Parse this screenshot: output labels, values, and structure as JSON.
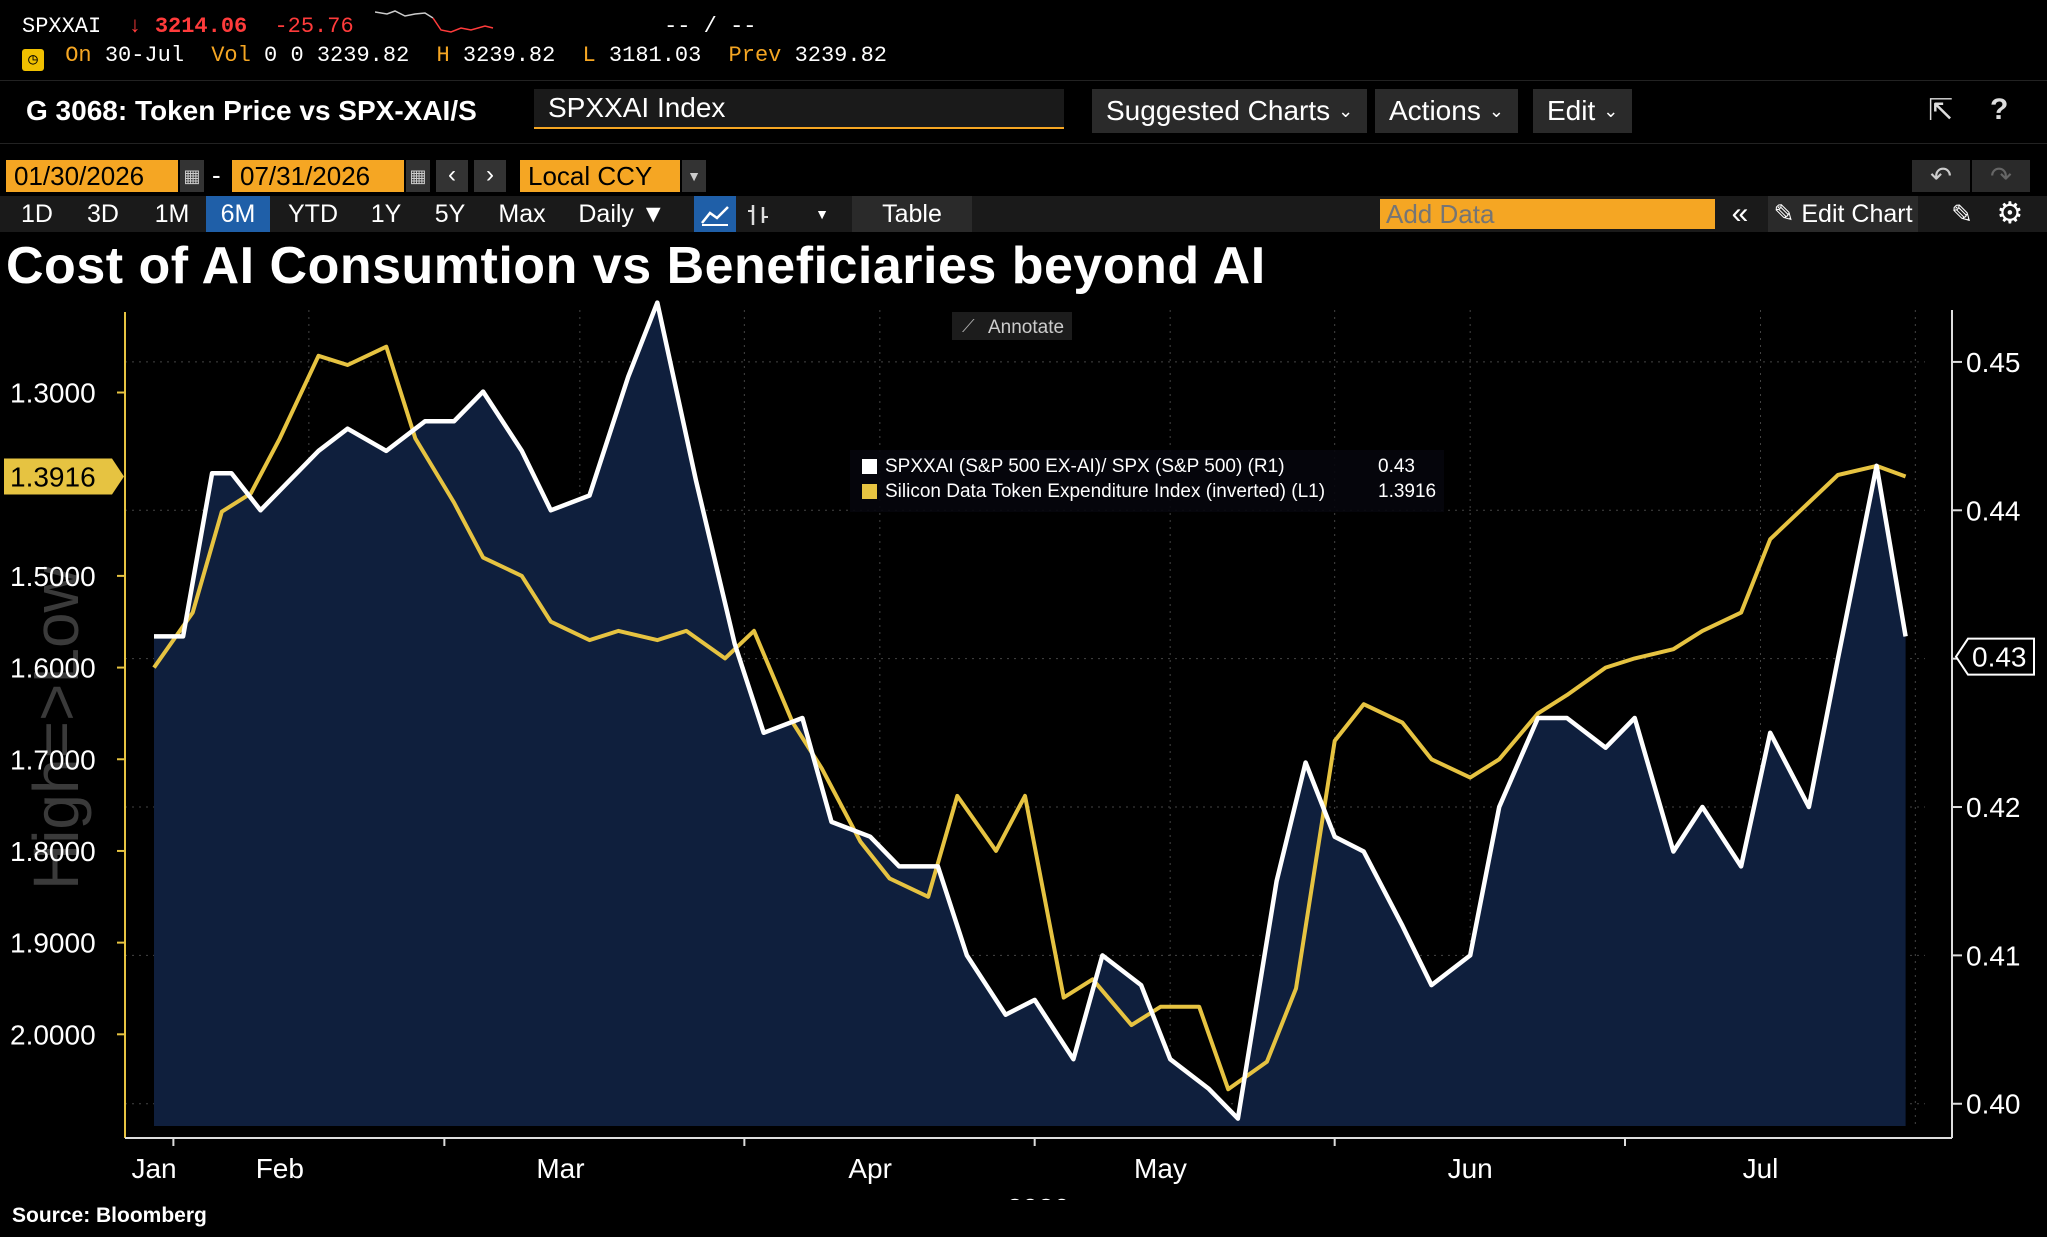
{
  "quote": {
    "ticker": "SPXXAI",
    "arrow": "↓",
    "last": "3214.06",
    "change": "-25.76",
    "bidask": "-- / --",
    "on_label": "On",
    "date": "30-Jul",
    "vol_label": "Vol",
    "vol": "0",
    "vol2": "0",
    "open": "3239.82",
    "high_label": "H",
    "high": "3239.82",
    "low_label": "L",
    "low": "3181.03",
    "prev_label": "Prev",
    "prev": "3239.82"
  },
  "toolbar": {
    "chart_id": "G 3068: Token Price vs SPX-XAI/S",
    "security": "SPXXAI Index",
    "suggested": "Suggested Charts",
    "actions": "Actions",
    "edit": "Edit",
    "help": "?"
  },
  "dates": {
    "start": "01/30/2026",
    "sep": "-",
    "end": "07/31/2026",
    "currency": "Local CCY"
  },
  "ranges": [
    "1D",
    "3D",
    "1M",
    "6M",
    "YTD",
    "1Y",
    "5Y",
    "Max"
  ],
  "active_range": "6M",
  "frequency": "Daily ▼",
  "table_label": "Table",
  "add_data_placeholder": "Add Data",
  "edit_chart": "Edit Chart",
  "colors": {
    "accent": "#f5a623",
    "white_series": "#ffffff",
    "yellow_series": "#e6c341",
    "area_fill": "#0f1f3d",
    "active_tab": "#1f5fa8"
  },
  "chart_data": {
    "type": "line",
    "title": "Cost of AI Consumtion vs Beneficiaries beyond AI",
    "annotate_label": "Annotate",
    "watermark": "High=>Low",
    "x_months": [
      "Jan",
      "Feb",
      "Mar",
      "Apr",
      "May",
      "Jun",
      "Jul"
    ],
    "x_year": "2026",
    "left_axis": {
      "inverted": true,
      "range": [
        2.1,
        1.21
      ],
      "ticks": [
        "1.3000",
        "1.5000",
        "1.6000",
        "1.7000",
        "1.8000",
        "1.9000",
        "2.0000"
      ],
      "current_label": "1.3916"
    },
    "right_axis": {
      "range": [
        0.3985,
        0.4535
      ],
      "ticks": [
        "0.45",
        "0.44",
        "0.43",
        "0.42",
        "0.41",
        "0.40"
      ],
      "current_label": "0.43"
    },
    "grid": true,
    "legend_position": "top-center",
    "series": [
      {
        "name": "SPXXAI (S&P 500 EX-AI)/ SPX (S&P 500) (R1)",
        "value": "0.43",
        "axis": "right",
        "dates": [
          "2026-01-30",
          "2026-02-02",
          "2026-02-05",
          "2026-02-07",
          "2026-02-10",
          "2026-02-13",
          "2026-02-16",
          "2026-02-19",
          "2026-02-23",
          "2026-02-27",
          "2026-03-02",
          "2026-03-05",
          "2026-03-09",
          "2026-03-12",
          "2026-03-16",
          "2026-03-20",
          "2026-03-23",
          "2026-03-27",
          "2026-03-31",
          "2026-04-03",
          "2026-04-07",
          "2026-04-10",
          "2026-04-14",
          "2026-04-17",
          "2026-04-21",
          "2026-04-24",
          "2026-04-28",
          "2026-05-01",
          "2026-05-05",
          "2026-05-08",
          "2026-05-12",
          "2026-05-15",
          "2026-05-19",
          "2026-05-22",
          "2026-05-26",
          "2026-05-29",
          "2026-06-01",
          "2026-06-04",
          "2026-06-08",
          "2026-06-11",
          "2026-06-15",
          "2026-06-18",
          "2026-06-22",
          "2026-06-25",
          "2026-06-29",
          "2026-07-02",
          "2026-07-06",
          "2026-07-09",
          "2026-07-13",
          "2026-07-16",
          "2026-07-20",
          "2026-07-23",
          "2026-07-27",
          "2026-07-30"
        ],
        "values": [
          0.4315,
          0.4315,
          0.4425,
          0.4425,
          0.44,
          0.442,
          0.444,
          0.4455,
          0.444,
          0.446,
          0.446,
          0.448,
          0.444,
          0.44,
          0.441,
          0.449,
          0.454,
          0.442,
          0.431,
          0.425,
          0.426,
          0.419,
          0.418,
          0.416,
          0.416,
          0.41,
          0.406,
          0.407,
          0.403,
          0.41,
          0.408,
          0.403,
          0.401,
          0.399,
          0.415,
          0.423,
          0.418,
          0.417,
          0.412,
          0.408,
          0.41,
          0.42,
          0.426,
          0.426,
          0.424,
          0.426,
          0.417,
          0.42,
          0.416,
          0.425,
          0.42,
          0.43,
          0.443,
          0.4315
        ]
      },
      {
        "name": "Silicon Data Token Expenditure Index (inverted) (L1)",
        "value": "1.3916",
        "axis": "left",
        "dates": [
          "2026-01-30",
          "2026-02-03",
          "2026-02-06",
          "2026-02-09",
          "2026-02-12",
          "2026-02-16",
          "2026-02-19",
          "2026-02-23",
          "2026-02-26",
          "2026-03-02",
          "2026-03-05",
          "2026-03-09",
          "2026-03-12",
          "2026-03-16",
          "2026-03-19",
          "2026-03-23",
          "2026-03-26",
          "2026-03-30",
          "2026-04-02",
          "2026-04-06",
          "2026-04-09",
          "2026-04-13",
          "2026-04-16",
          "2026-04-20",
          "2026-04-23",
          "2026-04-27",
          "2026-04-30",
          "2026-05-04",
          "2026-05-07",
          "2026-05-11",
          "2026-05-14",
          "2026-05-18",
          "2026-05-21",
          "2026-05-25",
          "2026-05-28",
          "2026-06-01",
          "2026-06-04",
          "2026-06-08",
          "2026-06-11",
          "2026-06-15",
          "2026-06-18",
          "2026-06-22",
          "2026-06-25",
          "2026-06-29",
          "2026-07-02",
          "2026-07-06",
          "2026-07-09",
          "2026-07-13",
          "2026-07-16",
          "2026-07-20",
          "2026-07-23",
          "2026-07-27",
          "2026-07-30"
        ],
        "values": [
          1.6,
          1.54,
          1.43,
          1.41,
          1.35,
          1.26,
          1.27,
          1.25,
          1.35,
          1.42,
          1.48,
          1.5,
          1.55,
          1.57,
          1.56,
          1.57,
          1.56,
          1.59,
          1.56,
          1.66,
          1.71,
          1.79,
          1.83,
          1.85,
          1.74,
          1.8,
          1.74,
          1.96,
          1.94,
          1.99,
          1.97,
          1.97,
          2.06,
          2.03,
          1.95,
          1.68,
          1.64,
          1.66,
          1.7,
          1.72,
          1.7,
          1.65,
          1.63,
          1.6,
          1.59,
          1.58,
          1.56,
          1.54,
          1.46,
          1.42,
          1.39,
          1.38,
          1.3916
        ]
      }
    ]
  },
  "source": "Source:  Bloomberg"
}
